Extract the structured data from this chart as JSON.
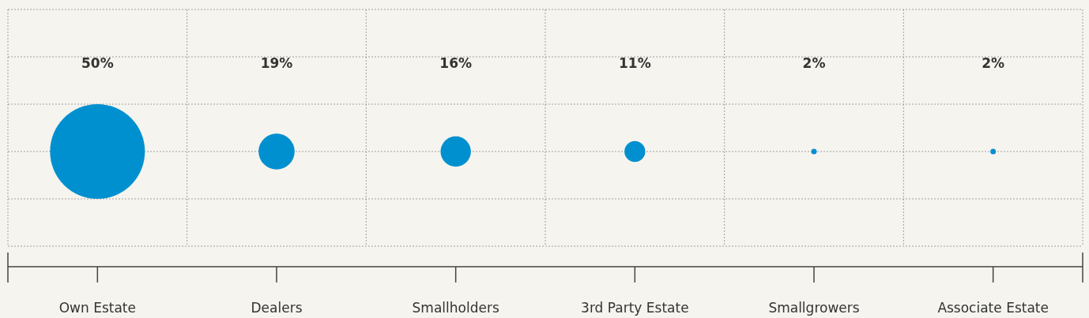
{
  "chart_data": {
    "type": "other",
    "categories": [
      "Own Estate",
      "Dealers",
      "Smallholders",
      "3rd Party Estate",
      "Smallgrowers",
      "Associate Estate"
    ],
    "values": [
      50,
      19,
      16,
      11,
      2,
      2
    ],
    "value_labels": [
      "50%",
      "19%",
      "16%",
      "11%",
      "2%",
      "2%"
    ],
    "color": "#0090d0"
  }
}
